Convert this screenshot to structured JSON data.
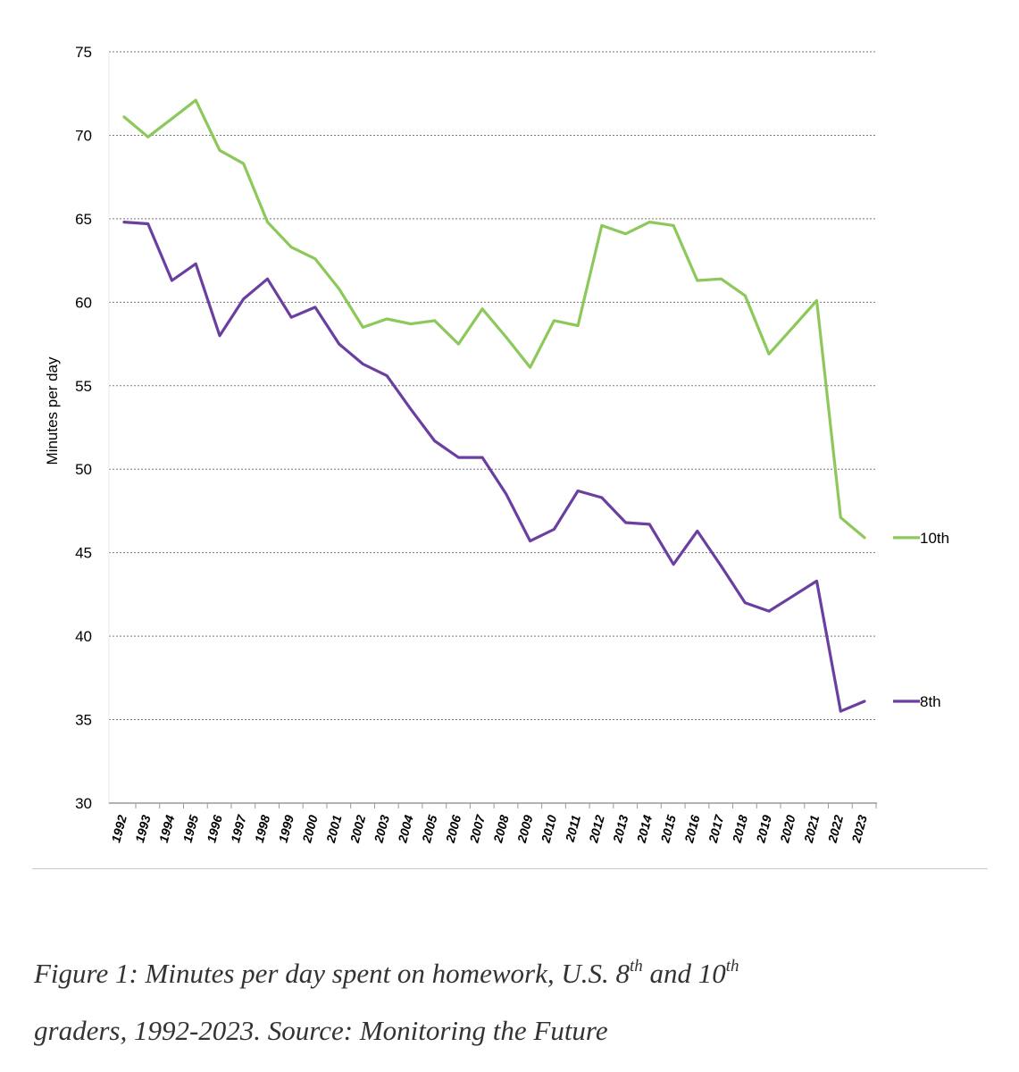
{
  "chart_data": {
    "type": "line",
    "xlabel": "",
    "ylabel": "Minutes per day",
    "ylim": [
      30,
      75
    ],
    "yticks": [
      30,
      35,
      40,
      45,
      50,
      55,
      60,
      65,
      70,
      75
    ],
    "grid": "horizontal dashed",
    "legend": "right, at end of each line",
    "x": [
      "1992",
      "1993",
      "1994",
      "1995",
      "1996",
      "1997",
      "1998",
      "1999",
      "2000",
      "2001",
      "2002",
      "2003",
      "2004",
      "2005",
      "2006",
      "2007",
      "2008",
      "2009",
      "2010",
      "2011",
      "2012",
      "2013",
      "2014",
      "2015",
      "2016",
      "2017",
      "2018",
      "2019",
      "2020",
      "2021",
      "2022",
      "2023"
    ],
    "series": [
      {
        "name": "10th",
        "color": "#8cc85a",
        "values": [
          71.1,
          69.9,
          71.0,
          72.1,
          69.1,
          68.3,
          64.8,
          63.3,
          62.6,
          60.8,
          58.5,
          59.0,
          58.7,
          58.9,
          57.5,
          59.6,
          57.9,
          56.1,
          58.9,
          58.6,
          64.6,
          64.1,
          64.8,
          64.6,
          61.3,
          61.4,
          60.4,
          56.9,
          58.5,
          60.1,
          47.1,
          45.9
        ]
      },
      {
        "name": "8th",
        "color": "#6b3fa0",
        "values": [
          64.8,
          64.7,
          61.3,
          62.3,
          58.0,
          60.2,
          61.4,
          59.1,
          59.7,
          57.5,
          56.3,
          55.6,
          53.6,
          51.7,
          50.7,
          50.7,
          48.5,
          45.7,
          46.4,
          48.7,
          48.3,
          46.8,
          46.7,
          44.3,
          46.3,
          44.2,
          42.0,
          41.5,
          42.4,
          43.3,
          35.5,
          36.1
        ]
      }
    ]
  },
  "caption": {
    "line1_a": "Figure 1: Minutes per day spent on homework, U.S. 8",
    "sup1": "th",
    "line1_b": " and 10",
    "sup2": "th",
    "line2": "graders, 1992-2023. Source: Monitoring the Future"
  }
}
